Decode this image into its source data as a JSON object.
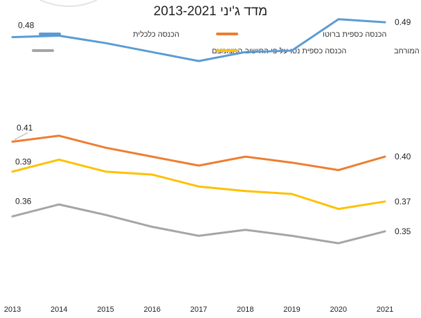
{
  "chart_data": {
    "type": "line",
    "title": "מדד ג'יני 2013-2021",
    "categories": [
      "2013",
      "2014",
      "2015",
      "2016",
      "2017",
      "2018",
      "2019",
      "2020",
      "2021"
    ],
    "ylim": [
      0.25,
      0.5
    ],
    "grid": false,
    "legend_position": "top",
    "series": [
      {
        "name": "הכנסה כלכלית",
        "color": "#5b9bd5",
        "values": [
          0.48,
          0.481,
          0.476,
          0.47,
          0.464,
          0.47,
          0.471,
          0.492,
          0.49
        ],
        "labels": {
          "first": "0.48",
          "last": "0.49"
        }
      },
      {
        "name": "הכנסה כספית ברוטו",
        "color": "#ed7d31",
        "values": [
          0.41,
          0.414,
          0.406,
          0.4,
          0.394,
          0.4,
          0.396,
          0.391,
          0.4
        ],
        "labels": {
          "first": "0.41",
          "last": "0.40"
        }
      },
      {
        "name": "הכנסה כספית נטו על פי החישוב המצומצם",
        "color": "#a5a5a5",
        "values": [
          0.36,
          0.368,
          0.361,
          0.353,
          0.347,
          0.351,
          0.347,
          0.342,
          0.35
        ],
        "labels": {
          "first": "0.36",
          "last": "0.35"
        }
      },
      {
        "name": "הכנסה כספית נטו על פי החישוב המורחב",
        "color": "#ffc000",
        "values": [
          0.39,
          0.398,
          0.39,
          0.388,
          0.38,
          0.377,
          0.375,
          0.365,
          0.37
        ],
        "labels": {
          "first": "0.39",
          "last": "0.37"
        }
      }
    ]
  }
}
